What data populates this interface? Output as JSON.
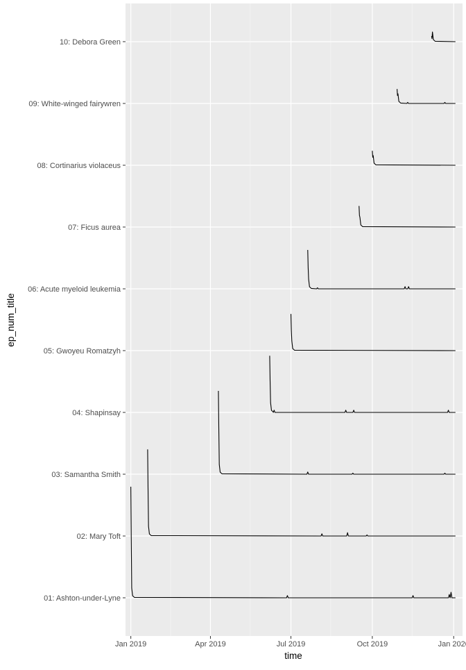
{
  "chart_data": {
    "type": "line",
    "xlabel": "time",
    "ylabel": "ep_num_title",
    "x_range": [
      "2018-12-26",
      "2020-01-11"
    ],
    "x_ticks": [
      {
        "date": "2019-01-01",
        "label": "Jan 2019"
      },
      {
        "date": "2019-04-01",
        "label": "Apr 2019"
      },
      {
        "date": "2019-07-01",
        "label": "Jul 2019"
      },
      {
        "date": "2019-10-01",
        "label": "Oct 2019"
      },
      {
        "date": "2020-01-01",
        "label": "Jan 2020"
      }
    ],
    "x_minor_ticks": [
      "2019-02-15",
      "2019-05-16",
      "2019-08-15",
      "2019-11-15"
    ],
    "categories": [
      "01: Ashton-under-Lyne",
      "02: Mary Toft",
      "03: Samantha Smith",
      "04: Shapinsay",
      "05: Gwoyeu Romatzyh",
      "06: Acute myeloid leukemia",
      "07: Ficus aurea",
      "08: Cortinarius violaceus",
      "09: White-winged fairywren",
      "10: Debora Green"
    ],
    "end_date": "2020-01-03",
    "series": [
      {
        "category": "01: Ashton-under-Lyne",
        "start": "2019-01-01",
        "peak": 1.0,
        "bumps": [
          [
            "2019-01-03",
            0.06
          ],
          [
            "2019-06-27",
            0.02
          ],
          [
            "2019-11-16",
            0.02
          ],
          [
            "2019-12-27",
            0.03
          ],
          [
            "2019-12-29",
            0.05
          ]
        ]
      },
      {
        "category": "02: Mary Toft",
        "start": "2019-01-20",
        "peak": 0.78,
        "bumps": [
          [
            "2019-01-22",
            0.08
          ],
          [
            "2019-08-05",
            0.02
          ],
          [
            "2019-09-03",
            0.03
          ],
          [
            "2019-09-25",
            0.01
          ]
        ]
      },
      {
        "category": "03: Samantha Smith",
        "start": "2019-04-10",
        "peak": 0.75,
        "bumps": [
          [
            "2019-07-20",
            0.02
          ],
          [
            "2019-09-09",
            0.01
          ],
          [
            "2019-12-22",
            0.01
          ]
        ]
      },
      {
        "category": "04: Shapinsay",
        "start": "2019-06-07",
        "peak": 0.51,
        "bumps": [
          [
            "2019-06-08",
            0.05
          ],
          [
            "2019-06-12",
            0.02
          ],
          [
            "2019-09-01",
            0.02
          ],
          [
            "2019-09-10",
            0.02
          ],
          [
            "2019-12-26",
            0.02
          ]
        ]
      },
      {
        "category": "05: Gwoyeu Romatzyh",
        "start": "2019-07-01",
        "peak": 0.33,
        "bumps": [
          [
            "2019-07-03",
            0.03
          ]
        ]
      },
      {
        "category": "06: Acute myeloid leukemia",
        "start": "2019-07-20",
        "peak": 0.35,
        "bumps": [
          [
            "2019-07-22",
            0.03
          ],
          [
            "2019-07-31",
            0.01
          ],
          [
            "2019-11-07",
            0.02
          ],
          [
            "2019-11-11",
            0.02
          ]
        ]
      },
      {
        "category": "07: Ficus aurea",
        "start": "2019-09-16",
        "peak": 0.19,
        "bumps": [
          [
            "2019-09-18",
            0.02
          ]
        ]
      },
      {
        "category": "08: Cortinarius violaceus",
        "start": "2019-10-01",
        "peak": 0.13,
        "bumps": [
          [
            "2019-10-03",
            0.02
          ]
        ]
      },
      {
        "category": "09: White-winged fairywren",
        "start": "2019-10-29",
        "peak": 0.13,
        "bumps": [
          [
            "2019-10-30",
            0.02
          ],
          [
            "2019-11-10",
            0.01
          ],
          [
            "2019-12-22",
            0.01
          ]
        ]
      },
      {
        "category": "10: Debora Green",
        "start": "2019-12-07",
        "peak": 0.05,
        "bumps": [
          [
            "2019-12-09",
            0.01
          ]
        ]
      }
    ],
    "grid": true,
    "legend": "none"
  }
}
